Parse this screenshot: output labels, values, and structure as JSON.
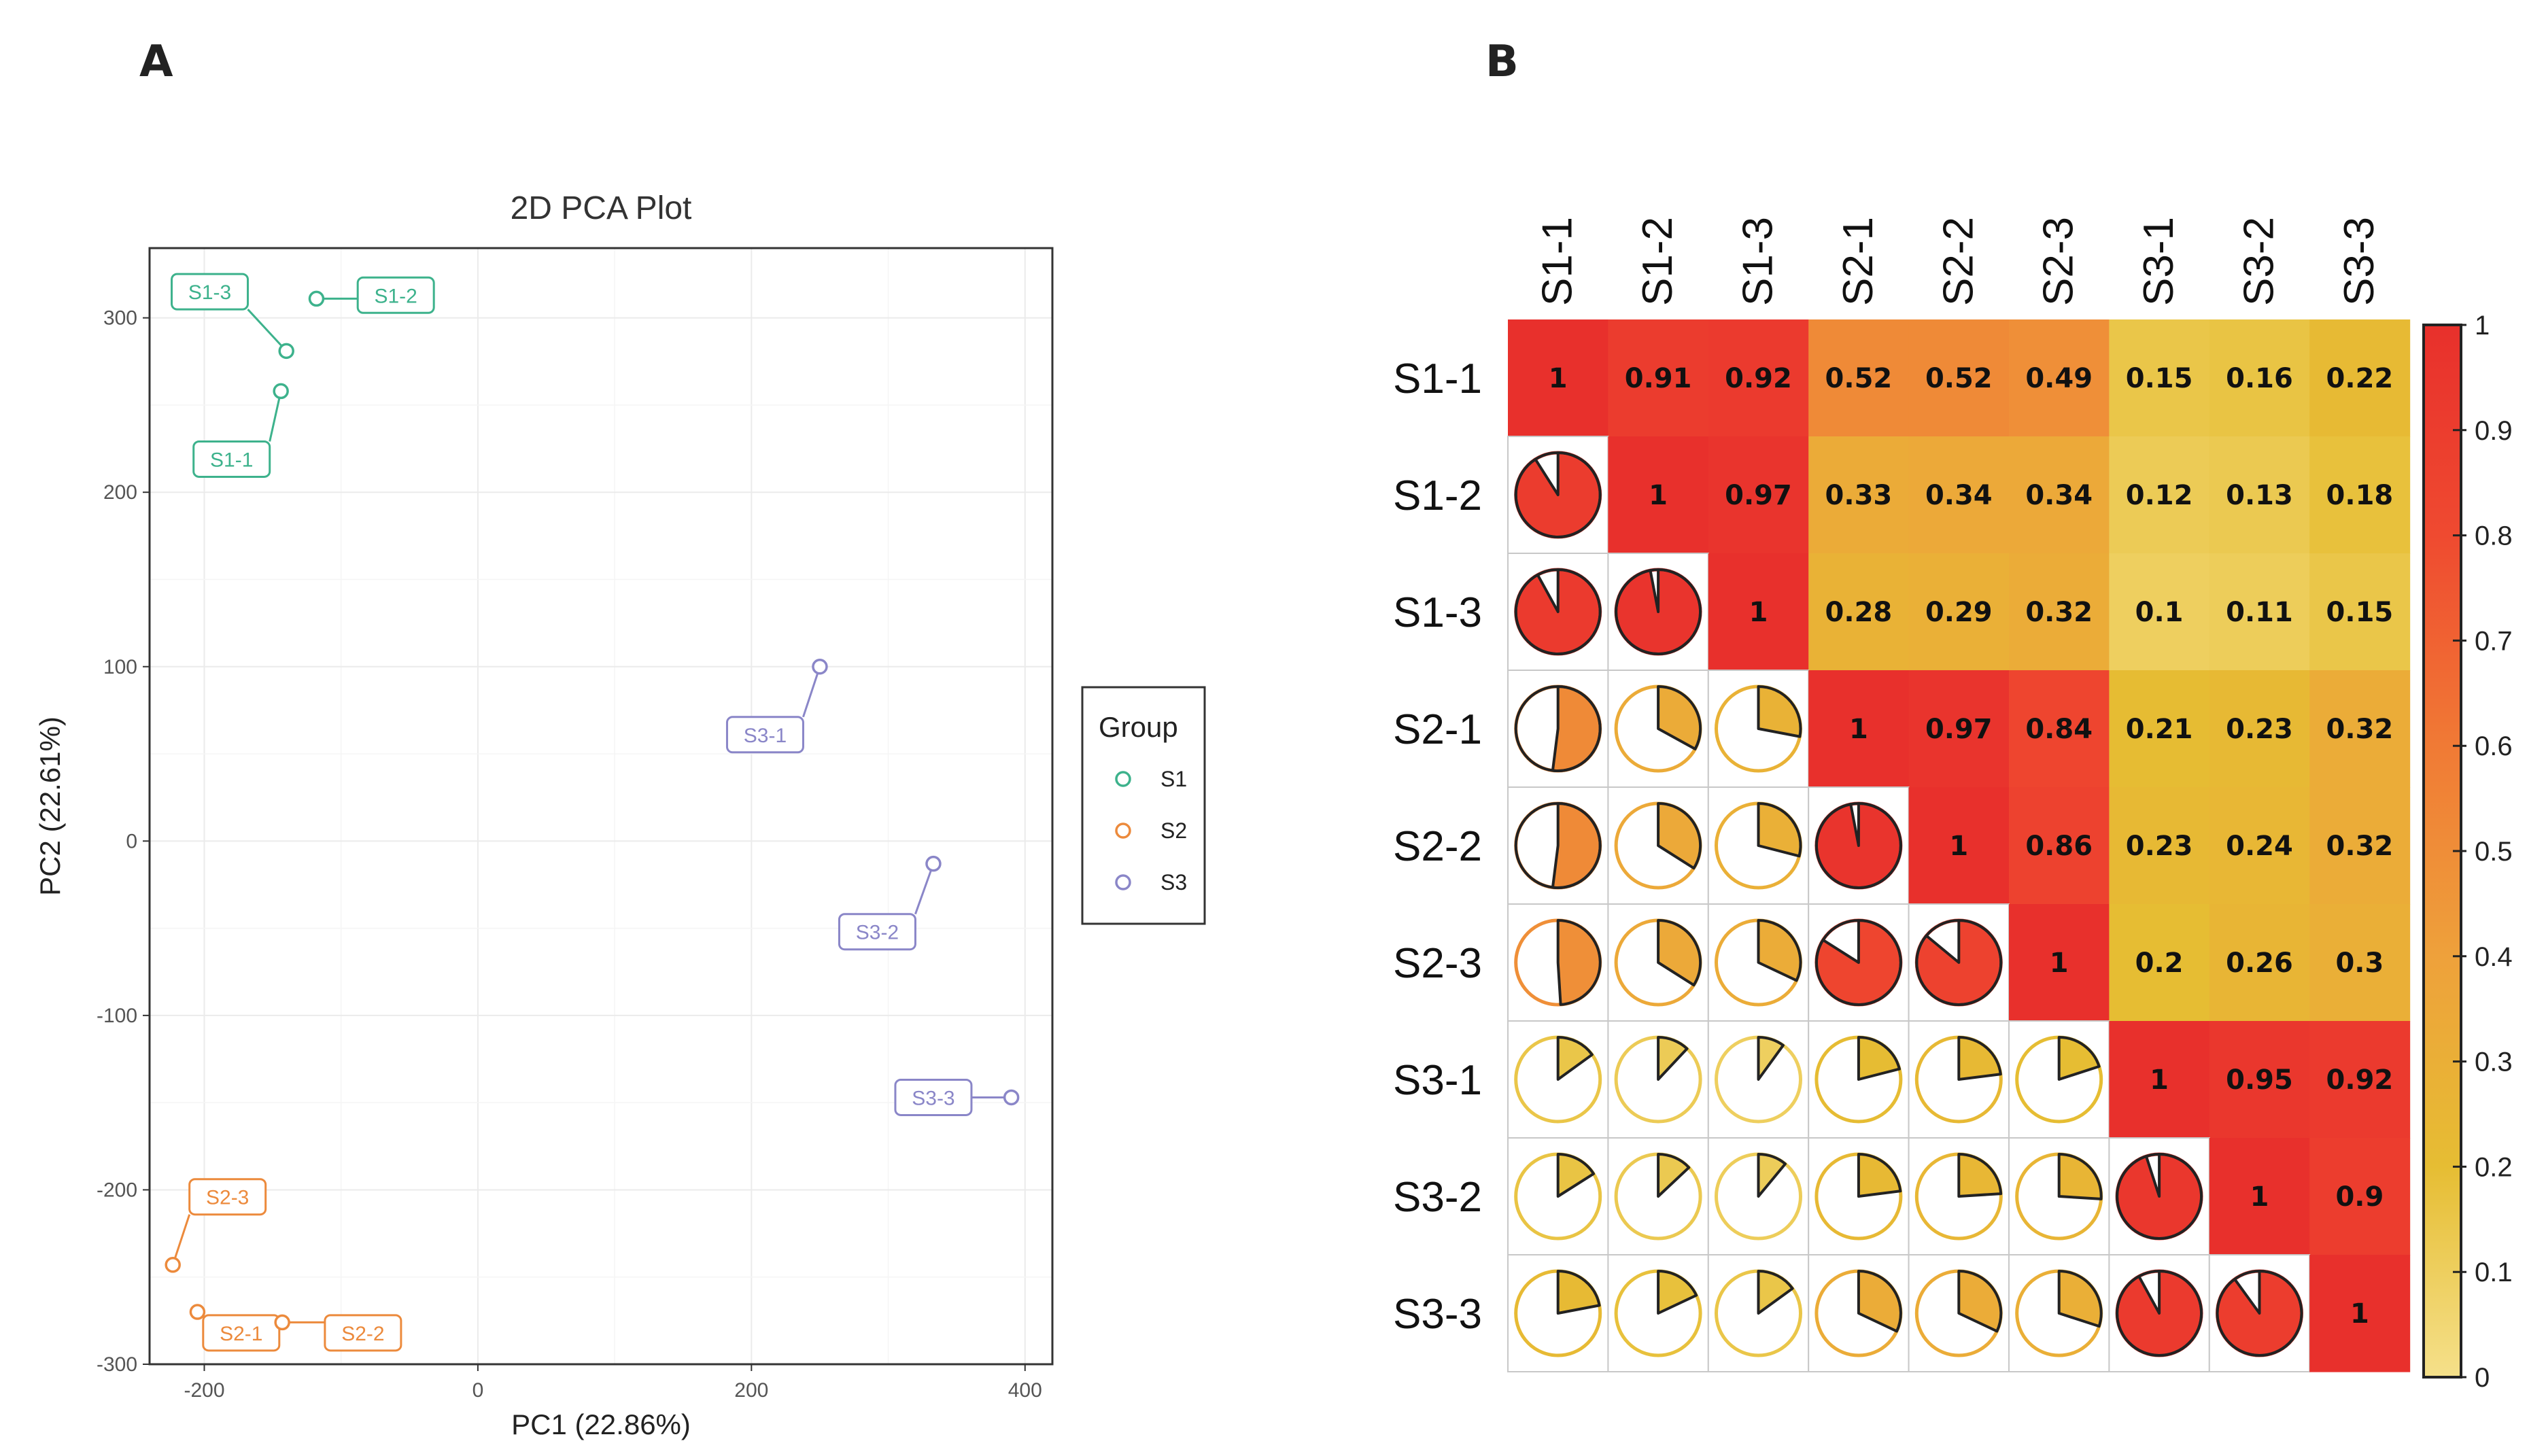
{
  "panels": {
    "a_label": "A",
    "b_label": "B"
  },
  "colors": {
    "S1": "#3db28c",
    "S2": "#ec8a3c",
    "S3": "#8a86c8"
  },
  "chart_data": [
    {
      "type": "scatter",
      "title": "2D PCA Plot",
      "xlabel": "PC1 (22.86%)",
      "ylabel": "PC2 (22.61%)",
      "xlim": [
        -240,
        420
      ],
      "ylim": [
        -300,
        340
      ],
      "xticks": [
        -200,
        0,
        200,
        400
      ],
      "xtick_labels": [
        "-200",
        "0",
        "200",
        "400"
      ],
      "yticks": [
        300,
        200,
        100,
        0,
        -100,
        -200,
        -300
      ],
      "ytick_labels": [
        "300",
        "200",
        "100",
        "0",
        "-100",
        "-200",
        "-300"
      ],
      "legend": {
        "title": "Group",
        "placement": "right",
        "entries": [
          "S1",
          "S2",
          "S3"
        ]
      },
      "points": [
        {
          "label": "S1-1",
          "group": "S1",
          "x": -144,
          "y": 258,
          "lx": -180,
          "ly": 219
        },
        {
          "label": "S1-2",
          "group": "S1",
          "x": -118,
          "y": 311,
          "lx": -60,
          "ly": 313
        },
        {
          "label": "S1-3",
          "group": "S1",
          "x": -140,
          "y": 281,
          "lx": -196,
          "ly": 315
        },
        {
          "label": "S2-1",
          "group": "S2",
          "x": -205,
          "y": -270,
          "lx": -173,
          "ly": -282
        },
        {
          "label": "S2-2",
          "group": "S2",
          "x": -143,
          "y": -276,
          "lx": -84,
          "ly": -282
        },
        {
          "label": "S2-3",
          "group": "S2",
          "x": -223,
          "y": -243,
          "lx": -183,
          "ly": -204
        },
        {
          "label": "S3-1",
          "group": "S3",
          "x": 250,
          "y": 100,
          "lx": 210,
          "ly": 61
        },
        {
          "label": "S3-2",
          "group": "S3",
          "x": 333,
          "y": -13,
          "lx": 292,
          "ly": -52
        },
        {
          "label": "S3-3",
          "group": "S3",
          "x": 390,
          "y": -147,
          "lx": 333,
          "ly": -147
        }
      ]
    },
    {
      "type": "heatmap",
      "variant": "correlogram (upper: colored cells with values, lower: pies)",
      "labels": [
        "S1-1",
        "S1-2",
        "S1-3",
        "S2-1",
        "S2-2",
        "S2-3",
        "S3-1",
        "S3-2",
        "S3-3"
      ],
      "matrix": [
        [
          1,
          0.91,
          0.92,
          0.52,
          0.52,
          0.49,
          0.15,
          0.16,
          0.22
        ],
        [
          0.91,
          1,
          0.97,
          0.33,
          0.34,
          0.34,
          0.12,
          0.13,
          0.18
        ],
        [
          0.92,
          0.97,
          1,
          0.28,
          0.29,
          0.32,
          0.1,
          0.11,
          0.15
        ],
        [
          0.52,
          0.33,
          0.28,
          1,
          0.97,
          0.84,
          0.21,
          0.23,
          0.32
        ],
        [
          0.52,
          0.34,
          0.29,
          0.97,
          1,
          0.86,
          0.23,
          0.24,
          0.32
        ],
        [
          0.49,
          0.34,
          0.32,
          0.84,
          0.86,
          1,
          0.2,
          0.26,
          0.3
        ],
        [
          0.15,
          0.12,
          0.1,
          0.21,
          0.23,
          0.2,
          1,
          0.95,
          0.92
        ],
        [
          0.16,
          0.13,
          0.11,
          0.23,
          0.24,
          0.26,
          0.95,
          1,
          0.9
        ],
        [
          0.22,
          0.18,
          0.15,
          0.32,
          0.32,
          0.3,
          0.92,
          0.9,
          1
        ]
      ],
      "value_labels": [
        [
          "1",
          "0.91",
          "0.92",
          "0.52",
          "0.52",
          "0.49",
          "0.15",
          "0.16",
          "0.22"
        ],
        [
          "0.91",
          "1",
          "0.97",
          "0.33",
          "0.34",
          "0.34",
          "0.12",
          "0.13",
          "0.18"
        ],
        [
          "0.92",
          "0.97",
          "1",
          "0.28",
          "0.29",
          "0.32",
          "0.1",
          "0.11",
          "0.15"
        ],
        [
          "0.52",
          "0.33",
          "0.28",
          "1",
          "0.97",
          "0.84",
          "0.21",
          "0.23",
          "0.32"
        ],
        [
          "0.52",
          "0.34",
          "0.29",
          "0.97",
          "1",
          "0.86",
          "0.23",
          "0.24",
          "0.32"
        ],
        [
          "0.49",
          "0.34",
          "0.32",
          "0.84",
          "0.86",
          "1",
          "0.2",
          "0.26",
          "0.3"
        ],
        [
          "0.15",
          "0.12",
          "0.1",
          "0.21",
          "0.23",
          "0.2",
          "1",
          "0.95",
          "0.92"
        ],
        [
          "0.16",
          "0.13",
          "0.11",
          "0.23",
          "0.24",
          "0.26",
          "0.95",
          "1",
          "0.9"
        ],
        [
          "0.22",
          "0.18",
          "0.15",
          "0.32",
          "0.32",
          "0.3",
          "0.92",
          "0.9",
          "1"
        ]
      ],
      "colorbar": {
        "range": [
          0,
          1
        ],
        "ticks": [
          1,
          0.9,
          0.8,
          0.7,
          0.6,
          0.5,
          0.4,
          0.3,
          0.2,
          0.1,
          0
        ],
        "tick_labels": [
          "1",
          "0.9",
          "0.8",
          "0.7",
          "0.6",
          "0.5",
          "0.4",
          "0.3",
          "0.2",
          "0.1",
          "0"
        ],
        "color_stops": [
          {
            "v": 0,
            "color": "#f5e08a"
          },
          {
            "v": 0.2,
            "color": "#e6bd33"
          },
          {
            "v": 0.4,
            "color": "#eea13b"
          },
          {
            "v": 0.6,
            "color": "#f07a35"
          },
          {
            "v": 0.8,
            "color": "#ef4a30"
          },
          {
            "v": 1,
            "color": "#e8302c"
          }
        ]
      }
    }
  ]
}
